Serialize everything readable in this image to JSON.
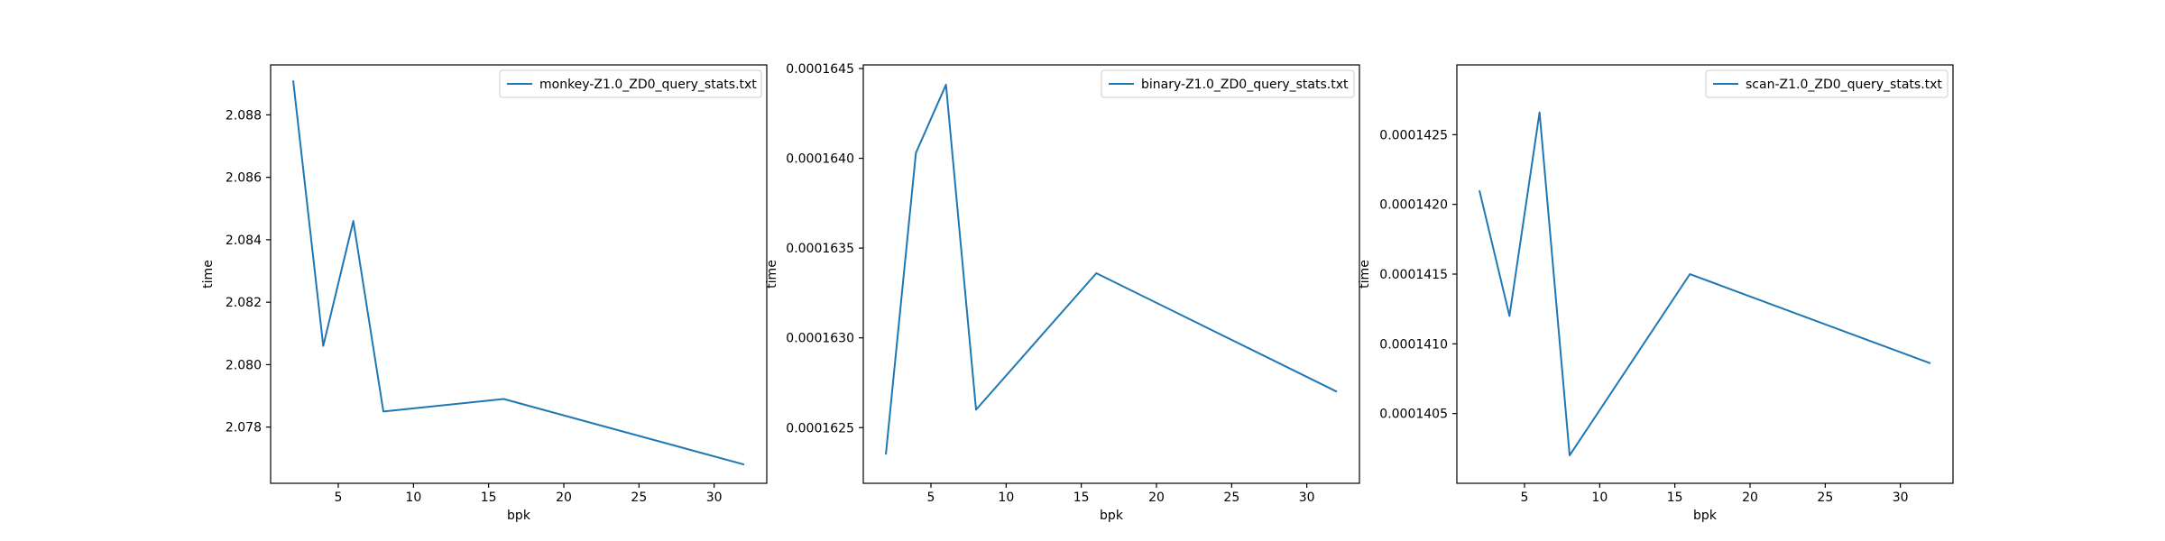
{
  "chart_data": [
    {
      "type": "line",
      "xlabel": "bpk",
      "ylabel": "time",
      "xlim": [
        0.5,
        33.5
      ],
      "ylim": [
        2.0762,
        2.0896
      ],
      "xticks": [
        5,
        10,
        15,
        20,
        25,
        30
      ],
      "xtick_labels": [
        "5",
        "10",
        "15",
        "20",
        "25",
        "30"
      ],
      "yticks": [
        2.078,
        2.08,
        2.082,
        2.084,
        2.086,
        2.088
      ],
      "ytick_labels": [
        "2.078",
        "2.080",
        "2.082",
        "2.084",
        "2.086",
        "2.088"
      ],
      "legend_position": "top-right",
      "series": [
        {
          "name": "monkey-Z1.0_ZD0_query_stats.txt",
          "color": "#1f77b4",
          "x": [
            2,
            4,
            6,
            8,
            16,
            32
          ],
          "y": [
            2.0891,
            2.0806,
            2.0846,
            2.0785,
            2.0789,
            2.0768
          ]
        }
      ]
    },
    {
      "type": "line",
      "xlabel": "bpk",
      "ylabel": "time",
      "xlim": [
        0.5,
        33.5
      ],
      "ylim": [
        0.00016219,
        0.00016452
      ],
      "xticks": [
        5,
        10,
        15,
        20,
        25,
        30
      ],
      "xtick_labels": [
        "5",
        "10",
        "15",
        "20",
        "25",
        "30"
      ],
      "yticks": [
        0.0001625,
        0.000163,
        0.0001635,
        0.000164,
        0.0001645
      ],
      "ytick_labels": [
        "0.0001625",
        "0.0001630",
        "0.0001635",
        "0.0001640",
        "0.0001645"
      ],
      "legend_position": "top-right",
      "series": [
        {
          "name": "binary-Z1.0_ZD0_query_stats.txt",
          "color": "#1f77b4",
          "x": [
            2,
            4,
            6,
            8,
            16,
            32
          ],
          "y": [
            0.00016235,
            0.00016403,
            0.00016441,
            0.0001626,
            0.00016336,
            0.0001627
          ]
        }
      ]
    },
    {
      "type": "line",
      "xlabel": "bpk",
      "ylabel": "time",
      "xlim": [
        0.5,
        33.5
      ],
      "ylim": [
        0.00014,
        0.000143
      ],
      "xticks": [
        5,
        10,
        15,
        20,
        25,
        30
      ],
      "xtick_labels": [
        "5",
        "10",
        "15",
        "20",
        "25",
        "30"
      ],
      "yticks": [
        0.0001405,
        0.000141,
        0.0001415,
        0.000142,
        0.0001425
      ],
      "ytick_labels": [
        "0.0001405",
        "0.0001410",
        "0.0001415",
        "0.0001420",
        "0.0001425"
      ],
      "legend_position": "top-right",
      "series": [
        {
          "name": "scan-Z1.0_ZD0_query_stats.txt",
          "color": "#1f77b4",
          "x": [
            2,
            4,
            6,
            8,
            16,
            32
          ],
          "y": [
            0.0001421,
            0.0001412,
            0.00014266,
            0.0001402,
            0.0001415,
            0.00014086
          ]
        }
      ]
    }
  ]
}
